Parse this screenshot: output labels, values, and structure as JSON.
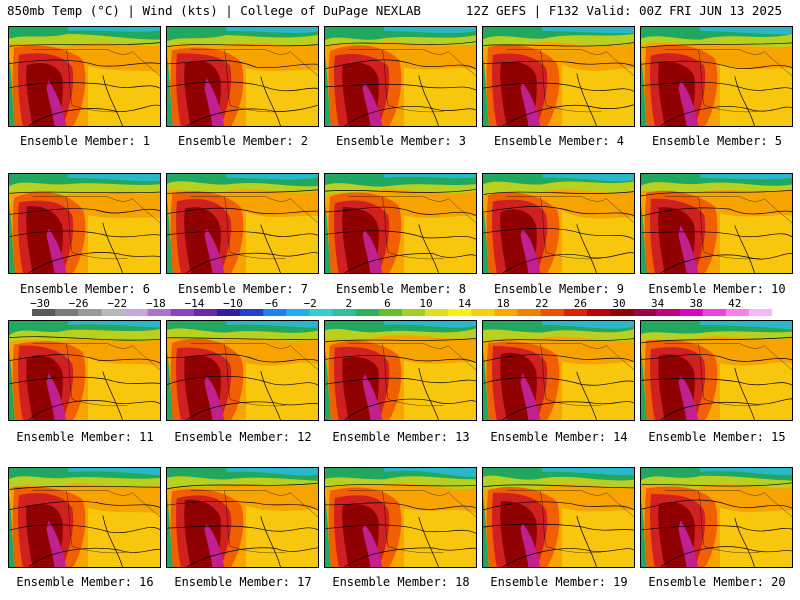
{
  "header": {
    "left": "850mb Temp (°C) | Wind (kts) | College of DuPage NEXLAB",
    "right": "12Z GEFS | F132 Valid: 00Z FRI JUN 13 2025"
  },
  "members": [
    {
      "label": "Ensemble Member: 1"
    },
    {
      "label": "Ensemble Member: 2"
    },
    {
      "label": "Ensemble Member: 3"
    },
    {
      "label": "Ensemble Member: 4"
    },
    {
      "label": "Ensemble Member: 5"
    },
    {
      "label": "Ensemble Member: 6"
    },
    {
      "label": "Ensemble Member: 7"
    },
    {
      "label": "Ensemble Member: 8"
    },
    {
      "label": "Ensemble Member: 9"
    },
    {
      "label": "Ensemble Member: 10"
    },
    {
      "label": "Ensemble Member: 11"
    },
    {
      "label": "Ensemble Member: 12"
    },
    {
      "label": "Ensemble Member: 13"
    },
    {
      "label": "Ensemble Member: 14"
    },
    {
      "label": "Ensemble Member: 15"
    },
    {
      "label": "Ensemble Member: 16"
    },
    {
      "label": "Ensemble Member: 17"
    },
    {
      "label": "Ensemble Member: 18"
    },
    {
      "label": "Ensemble Member: 19"
    },
    {
      "label": "Ensemble Member: 20"
    }
  ],
  "colorbar": {
    "ticks": [
      "−30",
      "−26",
      "−22",
      "−18",
      "−14",
      "−10",
      "−6",
      "−2",
      "2",
      "6",
      "10",
      "14",
      "18",
      "22",
      "26",
      "30",
      "34",
      "38",
      "42"
    ],
    "colors": [
      "#5a5a5a",
      "#7a7a7a",
      "#9a9a9a",
      "#b8b8b8",
      "#c8a8d8",
      "#b070d0",
      "#9040c0",
      "#6a2aa8",
      "#3020a0",
      "#2040d0",
      "#2080f0",
      "#20b0f0",
      "#30d0d0",
      "#30c0a0",
      "#30b060",
      "#60c030",
      "#a0d020",
      "#e0e020",
      "#f8f010",
      "#f8d010",
      "#f8a800",
      "#f08000",
      "#f05000",
      "#e02000",
      "#c00000",
      "#900000",
      "#a00040",
      "#c00080",
      "#e000c0",
      "#f040e0",
      "#f880f0",
      "#f8b8f8"
    ]
  },
  "map_colors": {
    "ocean_north": "#2ab8c8",
    "cool": "#20a860",
    "mild": "#b8d020",
    "warm": "#f8d010",
    "hot": "#f7a400",
    "hotter": "#f06000",
    "very_hot": "#d02020",
    "extreme": "#900000",
    "magenta": "#c02090"
  }
}
